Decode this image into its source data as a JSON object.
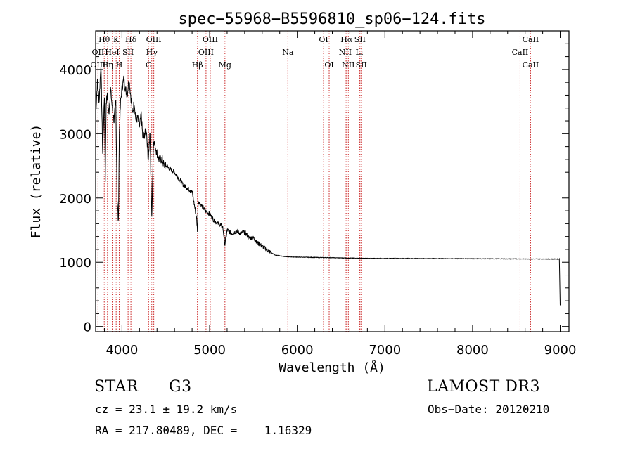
{
  "chart_data": {
    "type": "line",
    "title": "spec−55968−B5596810_sp06−124.fits",
    "xlabel": "Wavelength (Å)",
    "ylabel": "Flux (relative)",
    "xlim": [
      3700,
      9100
    ],
    "ylim": [
      -80,
      4600
    ],
    "x_ticks": [
      4000,
      5000,
      6000,
      7000,
      8000,
      9000
    ],
    "y_ticks": [
      0,
      1000,
      2000,
      3000,
      4000
    ],
    "line_color": "#000000",
    "marker_color": "#cc2a2a",
    "series": [
      {
        "name": "flux",
        "x": [
          3700,
          3720,
          3740,
          3760,
          3780,
          3800,
          3810,
          3820,
          3835,
          3850,
          3870,
          3890,
          3910,
          3930,
          3945,
          3960,
          3970,
          3985,
          4000,
          4020,
          4040,
          4060,
          4080,
          4100,
          4120,
          4140,
          4160,
          4180,
          4200,
          4220,
          4240,
          4260,
          4280,
          4300,
          4320,
          4340,
          4360,
          4380,
          4400,
          4420,
          4440,
          4460,
          4480,
          4500,
          4550,
          4600,
          4650,
          4700,
          4750,
          4800,
          4850,
          4861,
          4870,
          4900,
          4950,
          5000,
          5050,
          5100,
          5150,
          5175,
          5200,
          5250,
          5300,
          5350,
          5400,
          5450,
          5500,
          5550,
          5600,
          5650,
          5700,
          5750,
          5800,
          5850,
          5900,
          6000,
          6200,
          6400,
          6600,
          6800,
          7000,
          7500,
          8000,
          8500,
          8990,
          8995,
          9000
        ],
        "values": [
          3300,
          3800,
          3500,
          4100,
          2700,
          3600,
          2300,
          3500,
          3600,
          3300,
          3700,
          3400,
          3200,
          3500,
          2000,
          1600,
          3000,
          3500,
          3700,
          3850,
          3700,
          3600,
          3850,
          3600,
          3300,
          3500,
          3200,
          3250,
          3100,
          3300,
          2900,
          3000,
          3050,
          2600,
          3000,
          1700,
          2900,
          2800,
          2700,
          2600,
          2600,
          2600,
          2500,
          2500,
          2450,
          2400,
          2300,
          2200,
          2150,
          2100,
          1700,
          1500,
          1950,
          1900,
          1800,
          1750,
          1650,
          1600,
          1550,
          1280,
          1500,
          1450,
          1480,
          1450,
          1470,
          1380,
          1380,
          1300,
          1250,
          1200,
          1150,
          1110,
          1100,
          1090,
          1085,
          1080,
          1075,
          1070,
          1065,
          1060,
          1060,
          1058,
          1055,
          1052,
          1050,
          700,
          330
        ]
      }
    ],
    "spectral_lines": [
      {
        "label": "Hθ",
        "x": 3798,
        "row": 0
      },
      {
        "label": "K",
        "x": 3934,
        "row": 0
      },
      {
        "label": "Hδ",
        "x": 4102,
        "row": 0
      },
      {
        "label": "OIII",
        "x": 4363,
        "row": 0
      },
      {
        "label": "OIII",
        "x": 5007,
        "row": 0
      },
      {
        "label": "OI",
        "x": 6300,
        "row": 0
      },
      {
        "label": "Hα",
        "x": 6563,
        "row": 0
      },
      {
        "label": "SII",
        "x": 6716,
        "row": 0
      },
      {
        "label": "CaII",
        "x": 8662,
        "row": 0
      },
      {
        "label": "OII",
        "x": 3727,
        "row": 1
      },
      {
        "label": "HeI",
        "x": 3889,
        "row": 1
      },
      {
        "label": "SII",
        "x": 4070,
        "row": 1
      },
      {
        "label": "Hγ",
        "x": 4340,
        "row": 1
      },
      {
        "label": "OIII",
        "x": 4959,
        "row": 1
      },
      {
        "label": "Na",
        "x": 5893,
        "row": 1
      },
      {
        "label": "NII",
        "x": 6548,
        "row": 1
      },
      {
        "label": "Li",
        "x": 6708,
        "row": 1
      },
      {
        "label": "CaII",
        "x": 8542,
        "row": 1
      },
      {
        "label": "OIII",
        "x": 3727,
        "row": 2
      },
      {
        "label": "Hη",
        "x": 3835,
        "row": 2
      },
      {
        "label": "H",
        "x": 3969,
        "row": 2
      },
      {
        "label": "G",
        "x": 4304,
        "row": 2
      },
      {
        "label": "Hβ",
        "x": 4861,
        "row": 2
      },
      {
        "label": "Mg",
        "x": 5175,
        "row": 2
      },
      {
        "label": "OI",
        "x": 6364,
        "row": 2
      },
      {
        "label": "NII",
        "x": 6583,
        "row": 2
      },
      {
        "label": "SII",
        "x": 6731,
        "row": 2
      },
      {
        "label": "CaII",
        "x": 8662,
        "row": 2
      }
    ]
  },
  "info": {
    "object_class": "STAR",
    "subclass": "G3",
    "survey": "LAMOST DR3",
    "cz": "cz = 23.1 ± 19.2 km/s",
    "obs_date": "Obs−Date: 20120210",
    "coords": "RA = 217.80489, DEC =    1.16329"
  }
}
